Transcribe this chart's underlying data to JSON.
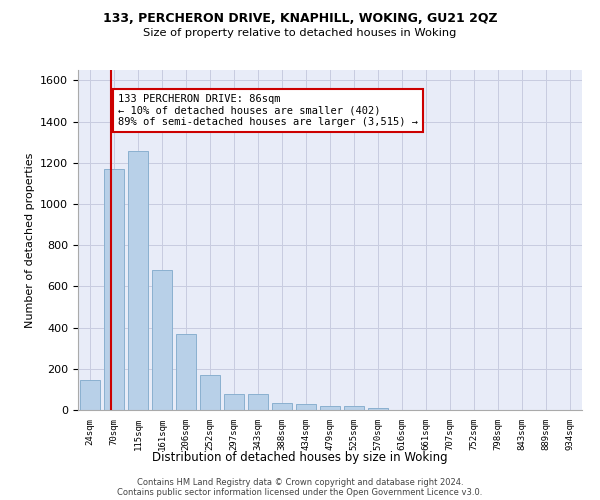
{
  "title1": "133, PERCHERON DRIVE, KNAPHILL, WOKING, GU21 2QZ",
  "title2": "Size of property relative to detached houses in Woking",
  "xlabel": "Distribution of detached houses by size in Woking",
  "ylabel": "Number of detached properties",
  "categories": [
    "24sqm",
    "70sqm",
    "115sqm",
    "161sqm",
    "206sqm",
    "252sqm",
    "297sqm",
    "343sqm",
    "388sqm",
    "434sqm",
    "479sqm",
    "525sqm",
    "570sqm",
    "616sqm",
    "661sqm",
    "707sqm",
    "752sqm",
    "798sqm",
    "843sqm",
    "889sqm",
    "934sqm"
  ],
  "values": [
    145,
    1170,
    1255,
    680,
    370,
    170,
    80,
    80,
    35,
    30,
    20,
    20,
    10,
    0,
    0,
    0,
    0,
    0,
    0,
    0,
    0
  ],
  "bar_color": "#b8d0e8",
  "bar_edge_color": "#8ab0d0",
  "grid_color": "#c8cce0",
  "bg_color": "#e8ecf8",
  "annotation_text": "133 PERCHERON DRIVE: 86sqm\n← 10% of detached houses are smaller (402)\n89% of semi-detached houses are larger (3,515) →",
  "footnote1": "Contains HM Land Registry data © Crown copyright and database right 2024.",
  "footnote2": "Contains public sector information licensed under the Open Government Licence v3.0.",
  "ylim": [
    0,
    1650
  ],
  "yticks": [
    0,
    200,
    400,
    600,
    800,
    1000,
    1200,
    1400,
    1600
  ],
  "red_line_color": "#cc0000",
  "annot_box_color": "#cc0000"
}
